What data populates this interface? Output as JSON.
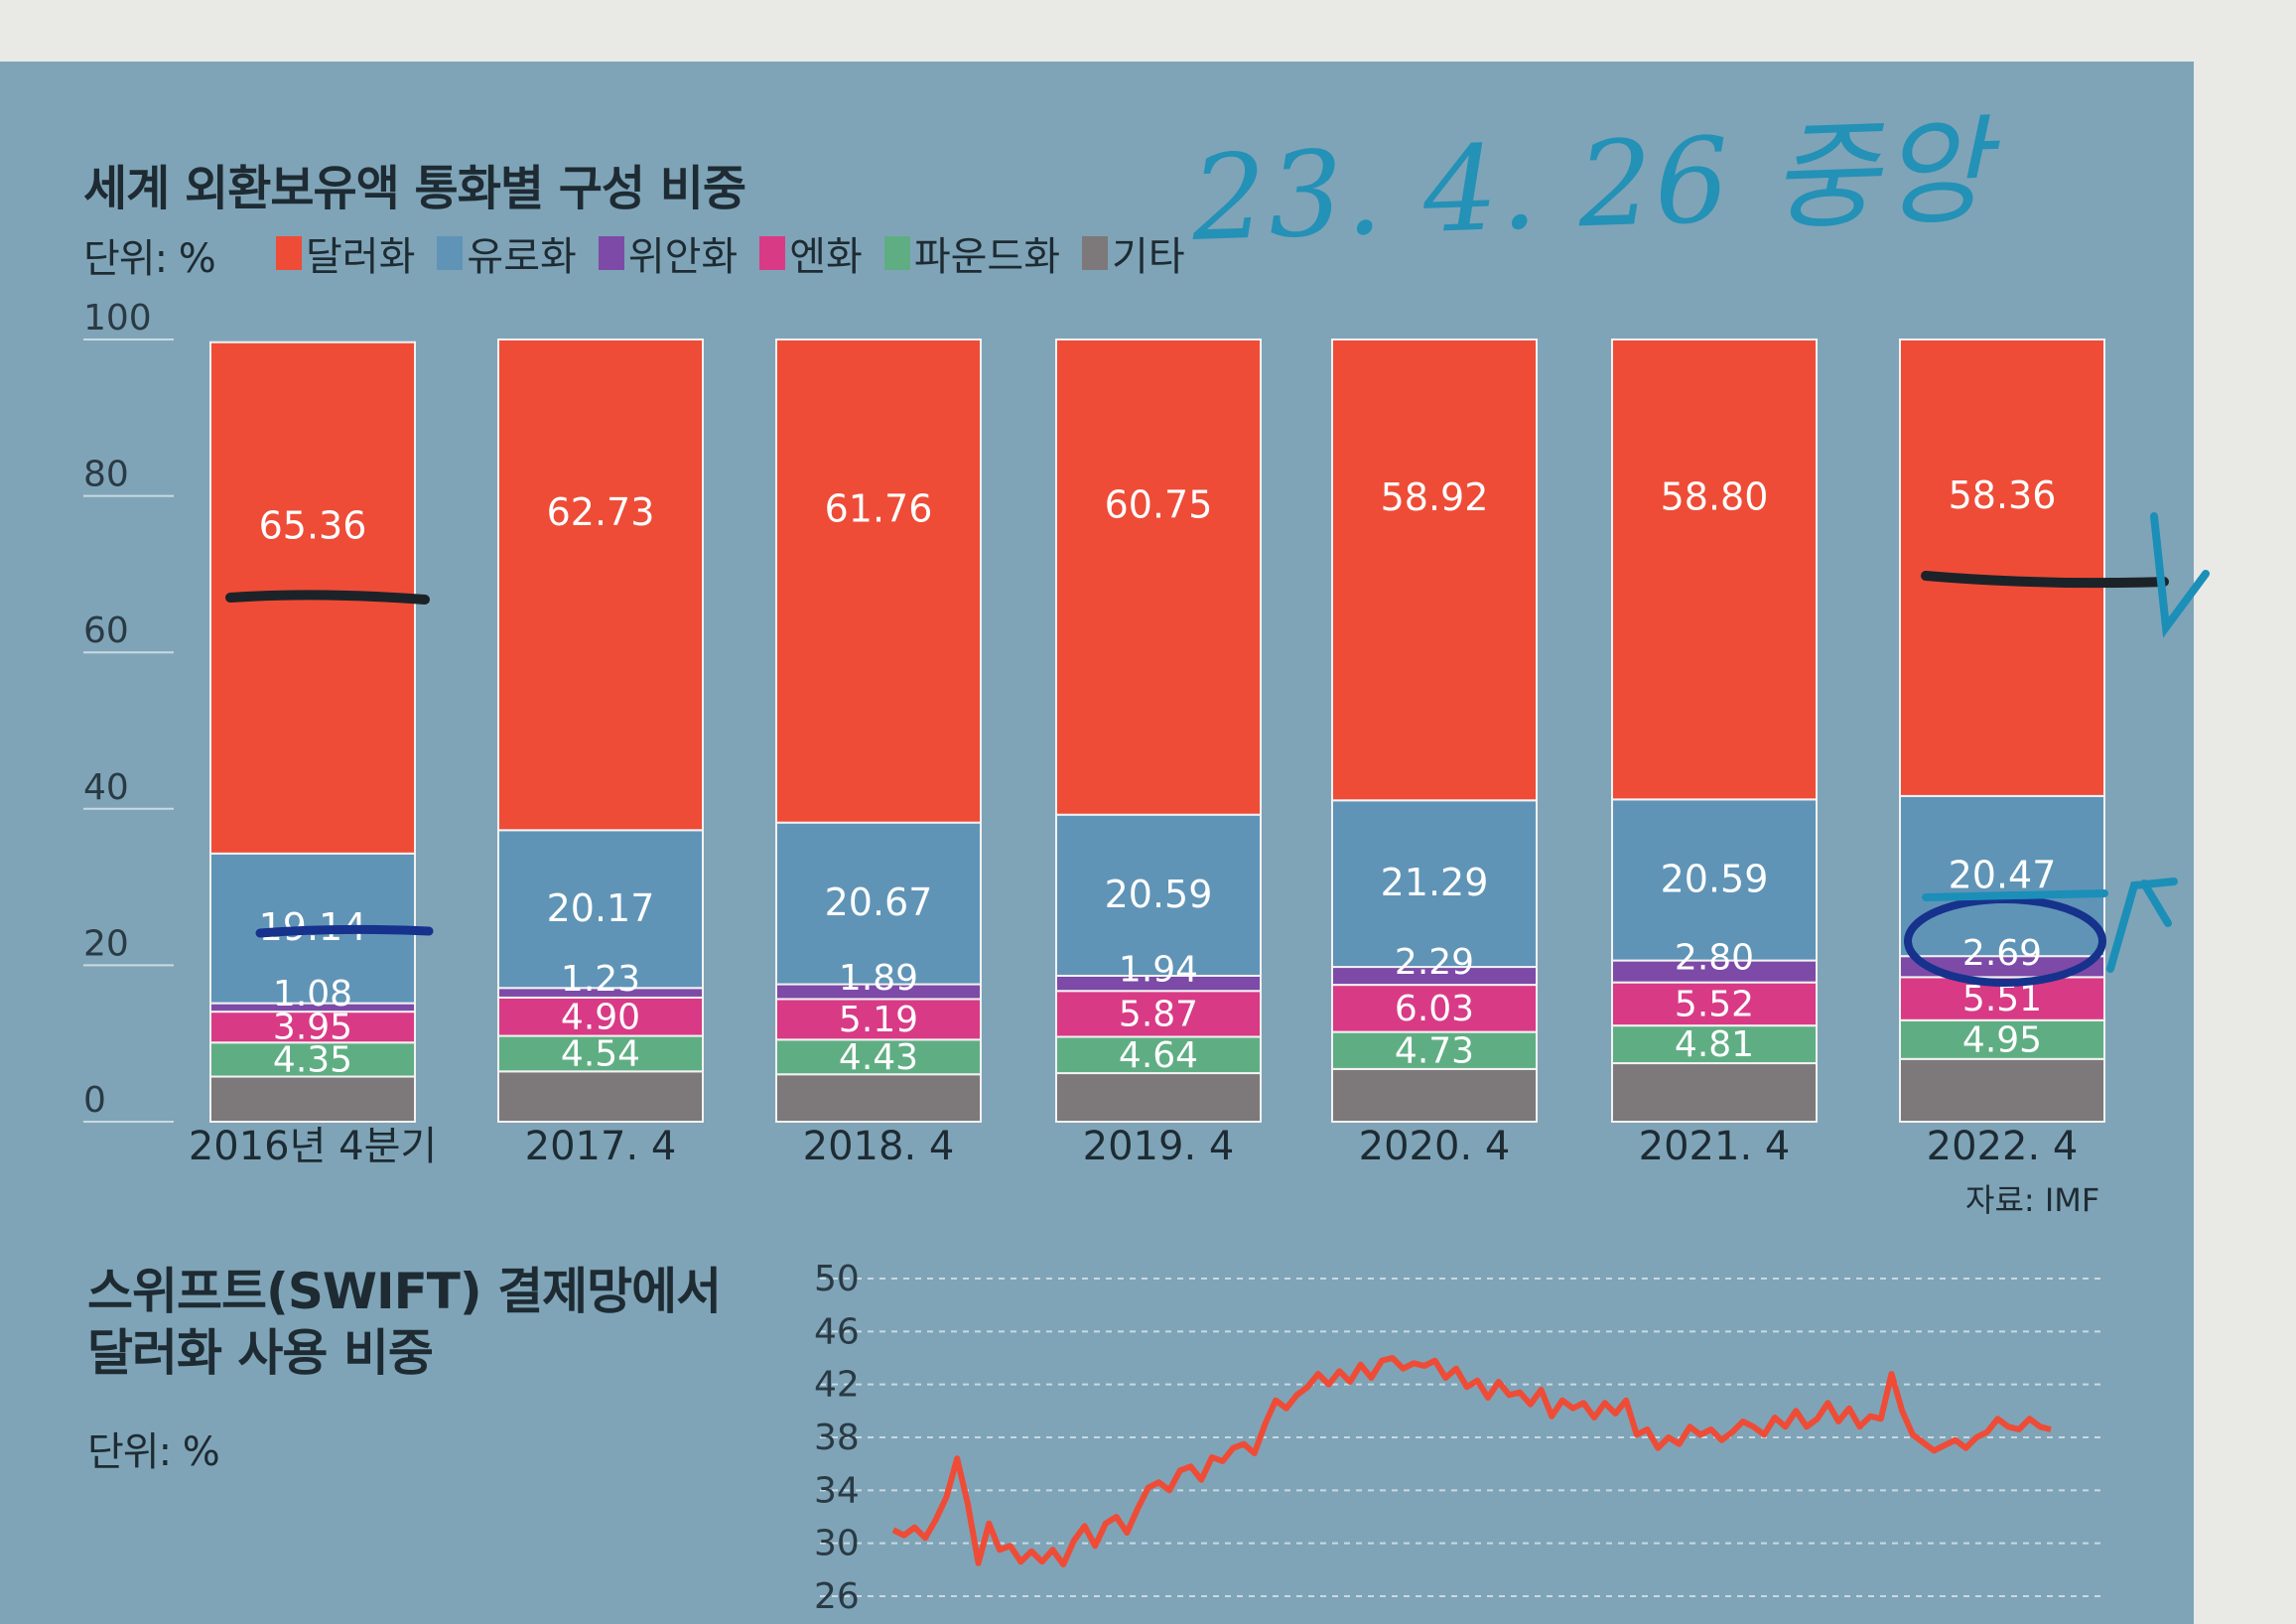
{
  "chart_data": [
    {
      "type": "bar",
      "stacked": true,
      "title": "세계 외환보유액 통화별 구성 비중",
      "unit": "단위: %",
      "source": "자료: IMF",
      "categories": [
        "2016년 4분기",
        "2017. 4",
        "2018. 4",
        "2019. 4",
        "2020. 4",
        "2021. 4",
        "2022. 4"
      ],
      "series": [
        {
          "name": "기타",
          "color": "#7d7879",
          "values": [
            5.77,
            6.43,
            6.06,
            6.21,
            6.74,
            7.48,
            8.02
          ]
        },
        {
          "name": "파운드화",
          "color": "#5fae83",
          "values": [
            4.35,
            4.54,
            4.43,
            4.64,
            4.73,
            4.81,
            4.95
          ]
        },
        {
          "name": "엔화",
          "color": "#d93a86",
          "values": [
            3.95,
            4.9,
            5.19,
            5.87,
            6.03,
            5.52,
            5.51
          ]
        },
        {
          "name": "위안화",
          "color": "#7d4aa7",
          "values": [
            1.08,
            1.23,
            1.89,
            1.94,
            2.29,
            2.8,
            2.69
          ]
        },
        {
          "name": "유로화",
          "color": "#5f94b7",
          "values": [
            19.14,
            20.17,
            20.67,
            20.59,
            21.29,
            20.59,
            20.47
          ]
        },
        {
          "name": "달러화",
          "color": "#ee4c37",
          "values": [
            65.36,
            62.73,
            61.76,
            60.75,
            58.92,
            58.8,
            58.36
          ]
        }
      ],
      "value_labels": [
        [
          "65.36",
          "19.14",
          "1.08",
          "3.95",
          "4.35"
        ],
        [
          "62.73",
          "20.17",
          "1.23",
          "4.90",
          "4.54"
        ],
        [
          "61.76",
          "20.67",
          "1.89",
          "5.19",
          "4.43"
        ],
        [
          "60.75",
          "20.59",
          "1.94",
          "5.87",
          "4.64"
        ],
        [
          "58.92",
          "21.29",
          "2.29",
          "6.03",
          "4.73"
        ],
        [
          "58.80",
          "20.59",
          "2.80",
          "5.52",
          "4.81"
        ],
        [
          "58.36",
          "20.47",
          "2.69",
          "5.51",
          "4.95"
        ]
      ],
      "ylim": [
        0,
        100
      ],
      "yticks": [
        "100",
        "80",
        "60",
        "40",
        "20",
        "0"
      ],
      "legend": [
        {
          "name": "달러화",
          "color": "#ee4c37"
        },
        {
          "name": "유로화",
          "color": "#5f94b7"
        },
        {
          "name": "위안화",
          "color": "#7d4aa7"
        },
        {
          "name": "엔화",
          "color": "#d93a86"
        },
        {
          "name": "파운드화",
          "color": "#5fae83"
        },
        {
          "name": "기타",
          "color": "#7d7879"
        }
      ]
    },
    {
      "type": "line",
      "title_lines": [
        "스위프트(SWIFT) 결제망에서",
        "달러화 사용 비중"
      ],
      "unit": "단위: %",
      "ylim": [
        26,
        50
      ],
      "yticks": [
        "50",
        "46",
        "42",
        "38",
        "34",
        "30",
        "26"
      ],
      "color": "#ee4c37",
      "values": [
        31,
        30.6,
        31.2,
        30.4,
        31.8,
        33.5,
        36.4,
        33,
        28.5,
        31.5,
        29.5,
        29.8,
        28.6,
        29.4,
        28.6,
        29.5,
        28.4,
        30.2,
        31.3,
        29.8,
        31.5,
        32,
        30.8,
        32.6,
        34.2,
        34.6,
        34,
        35.5,
        35.8,
        34.8,
        36.5,
        36.2,
        37.2,
        37.5,
        36.8,
        39,
        40.8,
        40.2,
        41.2,
        41.8,
        42.8,
        42,
        43,
        42.2,
        43.5,
        42.5,
        43.8,
        44,
        43.2,
        43.6,
        43.4,
        43.8,
        42.5,
        43.2,
        41.8,
        42.3,
        41,
        42.2,
        41.2,
        41.4,
        40.5,
        41.6,
        39.6,
        40.8,
        40.2,
        40.6,
        39.5,
        40.6,
        39.8,
        40.8,
        38.2,
        38.6,
        37.2,
        38,
        37.5,
        38.8,
        38.2,
        38.6,
        37.8,
        38.4,
        39.2,
        38.8,
        38.2,
        39.5,
        38.8,
        40,
        38.8,
        39.4,
        40.6,
        39.2,
        40.2,
        38.8,
        39.6,
        39.4,
        42.8,
        40,
        38.2,
        37.6,
        37,
        37.4,
        37.8,
        37.2,
        38,
        38.4,
        39.4,
        38.8,
        38.6,
        39.4,
        38.8,
        38.6
      ]
    }
  ],
  "handwriting": {
    "date_note": "23. 4. 26 중앙"
  }
}
